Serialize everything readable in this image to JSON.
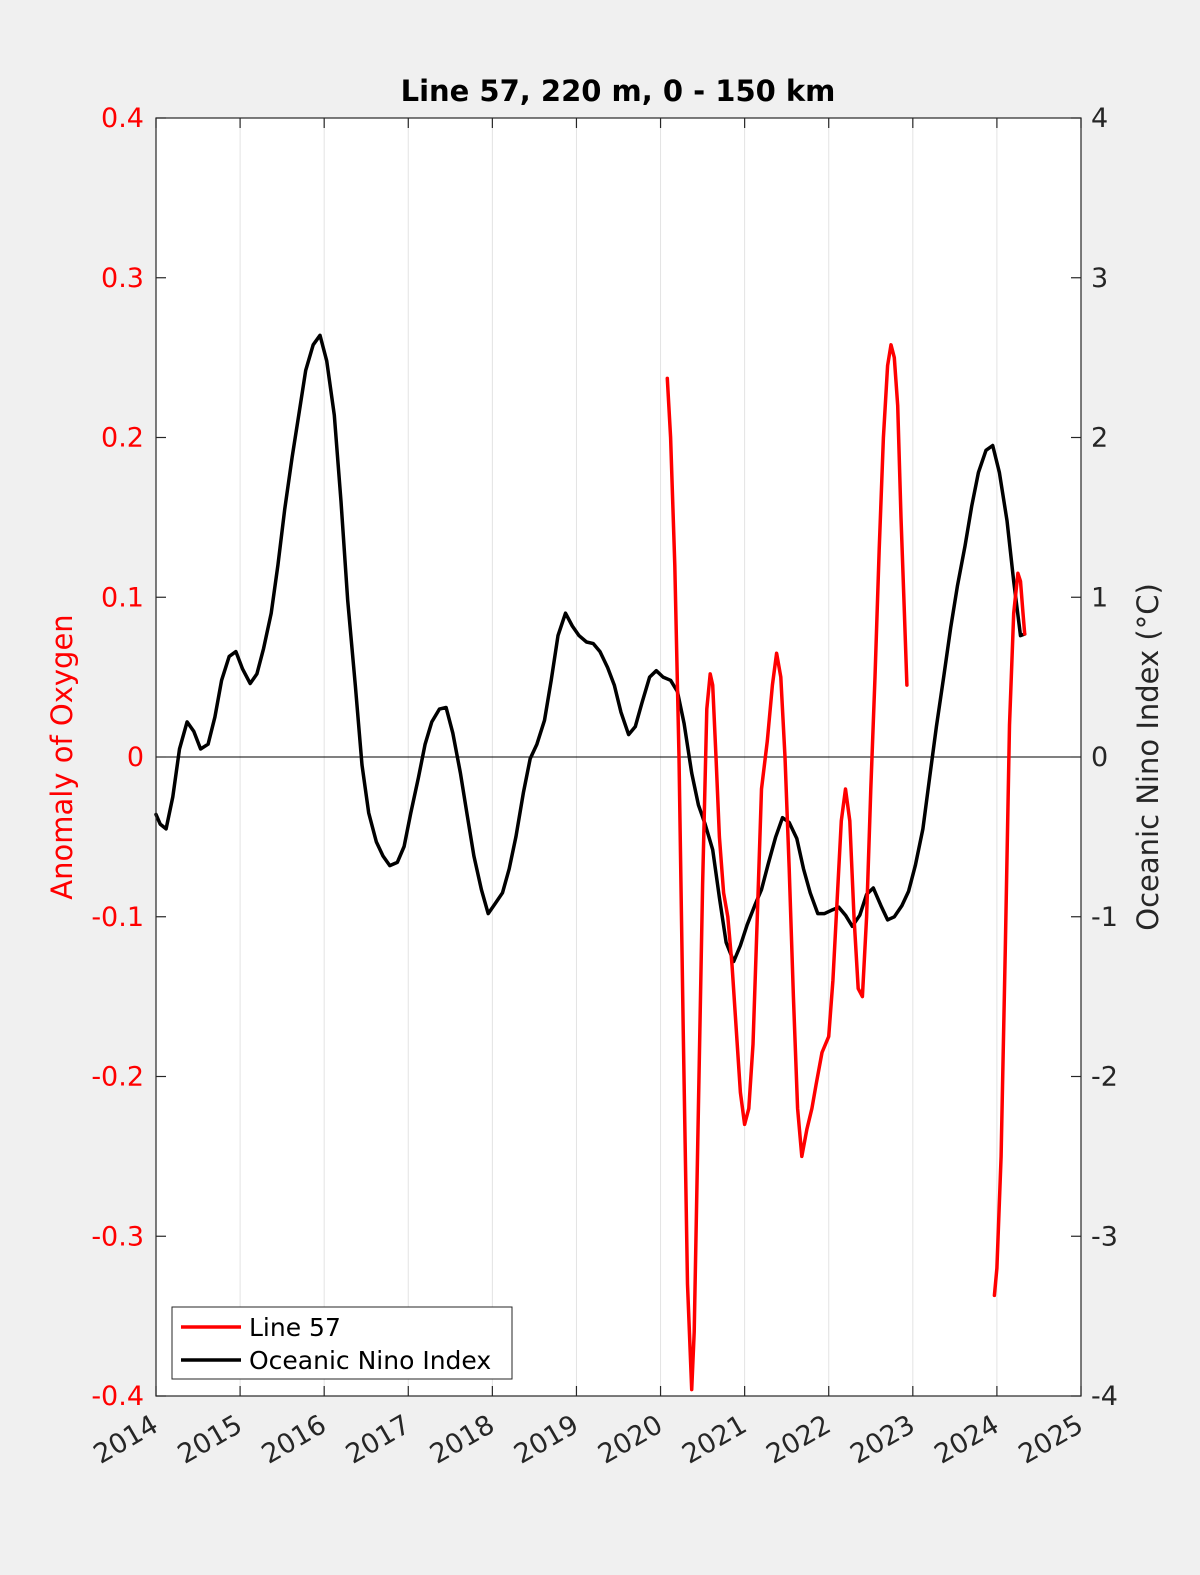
{
  "chart_data": {
    "type": "line",
    "title": "Line 57, 220 m, 0 - 150 km",
    "xlabel": "",
    "ylabel_left": "Anomaly of Oxygen",
    "ylabel_right": "Oceanic Nino Index (°C)",
    "xlim": [
      2014,
      2025
    ],
    "ylim_left": [
      -0.4,
      0.4
    ],
    "ylim_right": [
      -4,
      4
    ],
    "x_ticks": [
      2014,
      2015,
      2016,
      2017,
      2018,
      2019,
      2020,
      2021,
      2022,
      2023,
      2024,
      2025
    ],
    "x_tick_labels": [
      "2014",
      "2015",
      "2016",
      "2017",
      "2018",
      "2019",
      "2020",
      "2021",
      "2022",
      "2023",
      "2024",
      "2025"
    ],
    "y_left_ticks": [
      -0.4,
      -0.3,
      -0.2,
      -0.1,
      0,
      0.1,
      0.2,
      0.3,
      0.4
    ],
    "y_left_tick_labels": [
      "-0.4",
      "-0.3",
      "-0.2",
      "-0.1",
      "0",
      "0.1",
      "0.2",
      "0.3",
      "0.4"
    ],
    "y_right_ticks": [
      -4,
      -3,
      -2,
      -1,
      0,
      1,
      2,
      3,
      4
    ],
    "y_right_tick_labels": [
      "-4",
      "-3",
      "-2",
      "-1",
      "0",
      "1",
      "2",
      "3",
      "4"
    ],
    "grid": "vertical",
    "legend_position": "bottom-left",
    "colors": {
      "axis_left": "#ff0000",
      "line57": "#ff0000",
      "oni": "#000000",
      "figure_bg": "#f0f0f0",
      "axes_bg": "#ffffff"
    },
    "series": [
      {
        "name": "Line 57",
        "axis": "left",
        "segments": [
          [
            [
              2020.08,
              0.237
            ],
            [
              2020.12,
              0.2
            ],
            [
              2020.17,
              0.12
            ],
            [
              2020.22,
              0.0
            ],
            [
              2020.27,
              -0.17
            ],
            [
              2020.32,
              -0.33
            ],
            [
              2020.37,
              -0.396
            ],
            [
              2020.4,
              -0.36
            ],
            [
              2020.45,
              -0.22
            ],
            [
              2020.5,
              -0.08
            ],
            [
              2020.55,
              0.03
            ],
            [
              2020.59,
              0.052
            ],
            [
              2020.62,
              0.045
            ],
            [
              2020.66,
              0.0
            ],
            [
              2020.7,
              -0.05
            ],
            [
              2020.75,
              -0.085
            ],
            [
              2020.8,
              -0.1
            ],
            [
              2020.85,
              -0.13
            ],
            [
              2020.9,
              -0.17
            ],
            [
              2020.95,
              -0.21
            ],
            [
              2021.0,
              -0.23
            ],
            [
              2021.05,
              -0.22
            ],
            [
              2021.1,
              -0.18
            ],
            [
              2021.15,
              -0.1
            ],
            [
              2021.2,
              -0.02
            ],
            [
              2021.27,
              0.01
            ],
            [
              2021.33,
              0.045
            ],
            [
              2021.38,
              0.065
            ],
            [
              2021.43,
              0.05
            ],
            [
              2021.48,
              0.0
            ],
            [
              2021.53,
              -0.07
            ],
            [
              2021.58,
              -0.15
            ],
            [
              2021.63,
              -0.22
            ],
            [
              2021.68,
              -0.25
            ],
            [
              2021.74,
              -0.233
            ],
            [
              2021.8,
              -0.22
            ],
            [
              2021.85,
              -0.205
            ],
            [
              2021.92,
              -0.185
            ],
            [
              2022.0,
              -0.175
            ],
            [
              2022.05,
              -0.14
            ],
            [
              2022.1,
              -0.09
            ],
            [
              2022.15,
              -0.04
            ],
            [
              2022.2,
              -0.02
            ],
            [
              2022.25,
              -0.04
            ],
            [
              2022.3,
              -0.1
            ],
            [
              2022.35,
              -0.145
            ],
            [
              2022.4,
              -0.15
            ],
            [
              2022.45,
              -0.1
            ],
            [
              2022.5,
              -0.02
            ],
            [
              2022.55,
              0.05
            ],
            [
              2022.6,
              0.13
            ],
            [
              2022.65,
              0.2
            ],
            [
              2022.7,
              0.245
            ],
            [
              2022.74,
              0.258
            ],
            [
              2022.78,
              0.25
            ],
            [
              2022.82,
              0.22
            ],
            [
              2022.86,
              0.15
            ],
            [
              2022.9,
              0.09
            ],
            [
              2022.93,
              0.045
            ]
          ],
          [
            [
              2023.97,
              -0.337
            ],
            [
              2024.0,
              -0.32
            ],
            [
              2024.05,
              -0.25
            ],
            [
              2024.1,
              -0.12
            ],
            [
              2024.15,
              0.02
            ],
            [
              2024.2,
              0.09
            ],
            [
              2024.25,
              0.115
            ],
            [
              2024.28,
              0.11
            ],
            [
              2024.31,
              0.09
            ],
            [
              2024.33,
              0.077
            ]
          ]
        ]
      },
      {
        "name": "Oceanic Nino Index",
        "axis": "right",
        "points": [
          [
            2014.0,
            -0.36
          ],
          [
            2014.05,
            -0.42
          ],
          [
            2014.12,
            -0.45
          ],
          [
            2014.2,
            -0.25
          ],
          [
            2014.28,
            0.05
          ],
          [
            2014.37,
            0.22
          ],
          [
            2014.45,
            0.16
          ],
          [
            2014.53,
            0.05
          ],
          [
            2014.62,
            0.08
          ],
          [
            2014.7,
            0.25
          ],
          [
            2014.78,
            0.48
          ],
          [
            2014.87,
            0.63
          ],
          [
            2014.95,
            0.66
          ],
          [
            2015.03,
            0.55
          ],
          [
            2015.12,
            0.46
          ],
          [
            2015.2,
            0.52
          ],
          [
            2015.28,
            0.68
          ],
          [
            2015.37,
            0.9
          ],
          [
            2015.45,
            1.2
          ],
          [
            2015.53,
            1.55
          ],
          [
            2015.62,
            1.88
          ],
          [
            2015.7,
            2.15
          ],
          [
            2015.78,
            2.42
          ],
          [
            2015.87,
            2.58
          ],
          [
            2015.95,
            2.64
          ],
          [
            2016.03,
            2.48
          ],
          [
            2016.12,
            2.14
          ],
          [
            2016.2,
            1.6
          ],
          [
            2016.28,
            0.98
          ],
          [
            2016.37,
            0.45
          ],
          [
            2016.45,
            -0.05
          ],
          [
            2016.53,
            -0.35
          ],
          [
            2016.62,
            -0.53
          ],
          [
            2016.7,
            -0.62
          ],
          [
            2016.78,
            -0.68
          ],
          [
            2016.87,
            -0.66
          ],
          [
            2016.95,
            -0.56
          ],
          [
            2017.03,
            -0.35
          ],
          [
            2017.12,
            -0.13
          ],
          [
            2017.2,
            0.08
          ],
          [
            2017.28,
            0.22
          ],
          [
            2017.37,
            0.3
          ],
          [
            2017.45,
            0.31
          ],
          [
            2017.53,
            0.15
          ],
          [
            2017.62,
            -0.1
          ],
          [
            2017.7,
            -0.36
          ],
          [
            2017.78,
            -0.62
          ],
          [
            2017.87,
            -0.83
          ],
          [
            2017.95,
            -0.98
          ],
          [
            2018.03,
            -0.92
          ],
          [
            2018.12,
            -0.85
          ],
          [
            2018.2,
            -0.7
          ],
          [
            2018.28,
            -0.5
          ],
          [
            2018.37,
            -0.22
          ],
          [
            2018.45,
            -0.01
          ],
          [
            2018.53,
            0.08
          ],
          [
            2018.62,
            0.23
          ],
          [
            2018.7,
            0.48
          ],
          [
            2018.78,
            0.76
          ],
          [
            2018.87,
            0.9
          ],
          [
            2018.95,
            0.82
          ],
          [
            2019.03,
            0.76
          ],
          [
            2019.12,
            0.72
          ],
          [
            2019.2,
            0.71
          ],
          [
            2019.28,
            0.66
          ],
          [
            2019.37,
            0.56
          ],
          [
            2019.45,
            0.45
          ],
          [
            2019.53,
            0.28
          ],
          [
            2019.62,
            0.14
          ],
          [
            2019.7,
            0.19
          ],
          [
            2019.78,
            0.34
          ],
          [
            2019.87,
            0.5
          ],
          [
            2019.95,
            0.54
          ],
          [
            2020.03,
            0.5
          ],
          [
            2020.12,
            0.48
          ],
          [
            2020.2,
            0.41
          ],
          [
            2020.28,
            0.21
          ],
          [
            2020.37,
            -0.1
          ],
          [
            2020.45,
            -0.3
          ],
          [
            2020.53,
            -0.42
          ],
          [
            2020.62,
            -0.58
          ],
          [
            2020.7,
            -0.88
          ],
          [
            2020.78,
            -1.16
          ],
          [
            2020.87,
            -1.28
          ],
          [
            2020.95,
            -1.18
          ],
          [
            2021.03,
            -1.05
          ],
          [
            2021.12,
            -0.93
          ],
          [
            2021.2,
            -0.83
          ],
          [
            2021.28,
            -0.67
          ],
          [
            2021.37,
            -0.5
          ],
          [
            2021.45,
            -0.38
          ],
          [
            2021.53,
            -0.41
          ],
          [
            2021.62,
            -0.51
          ],
          [
            2021.7,
            -0.7
          ],
          [
            2021.78,
            -0.85
          ],
          [
            2021.87,
            -0.98
          ],
          [
            2021.95,
            -0.98
          ],
          [
            2022.03,
            -0.96
          ],
          [
            2022.12,
            -0.94
          ],
          [
            2022.2,
            -0.99
          ],
          [
            2022.28,
            -1.06
          ],
          [
            2022.37,
            -0.99
          ],
          [
            2022.45,
            -0.86
          ],
          [
            2022.53,
            -0.82
          ],
          [
            2022.62,
            -0.93
          ],
          [
            2022.7,
            -1.02
          ],
          [
            2022.78,
            -1.0
          ],
          [
            2022.87,
            -0.93
          ],
          [
            2022.95,
            -0.84
          ],
          [
            2023.03,
            -0.68
          ],
          [
            2023.12,
            -0.45
          ],
          [
            2023.2,
            -0.13
          ],
          [
            2023.28,
            0.19
          ],
          [
            2023.37,
            0.51
          ],
          [
            2023.45,
            0.81
          ],
          [
            2023.53,
            1.07
          ],
          [
            2023.62,
            1.32
          ],
          [
            2023.7,
            1.57
          ],
          [
            2023.78,
            1.78
          ],
          [
            2023.87,
            1.92
          ],
          [
            2023.95,
            1.95
          ],
          [
            2024.03,
            1.78
          ],
          [
            2024.12,
            1.48
          ],
          [
            2024.2,
            1.1
          ],
          [
            2024.28,
            0.76
          ],
          [
            2024.33,
            0.77
          ]
        ]
      }
    ]
  }
}
